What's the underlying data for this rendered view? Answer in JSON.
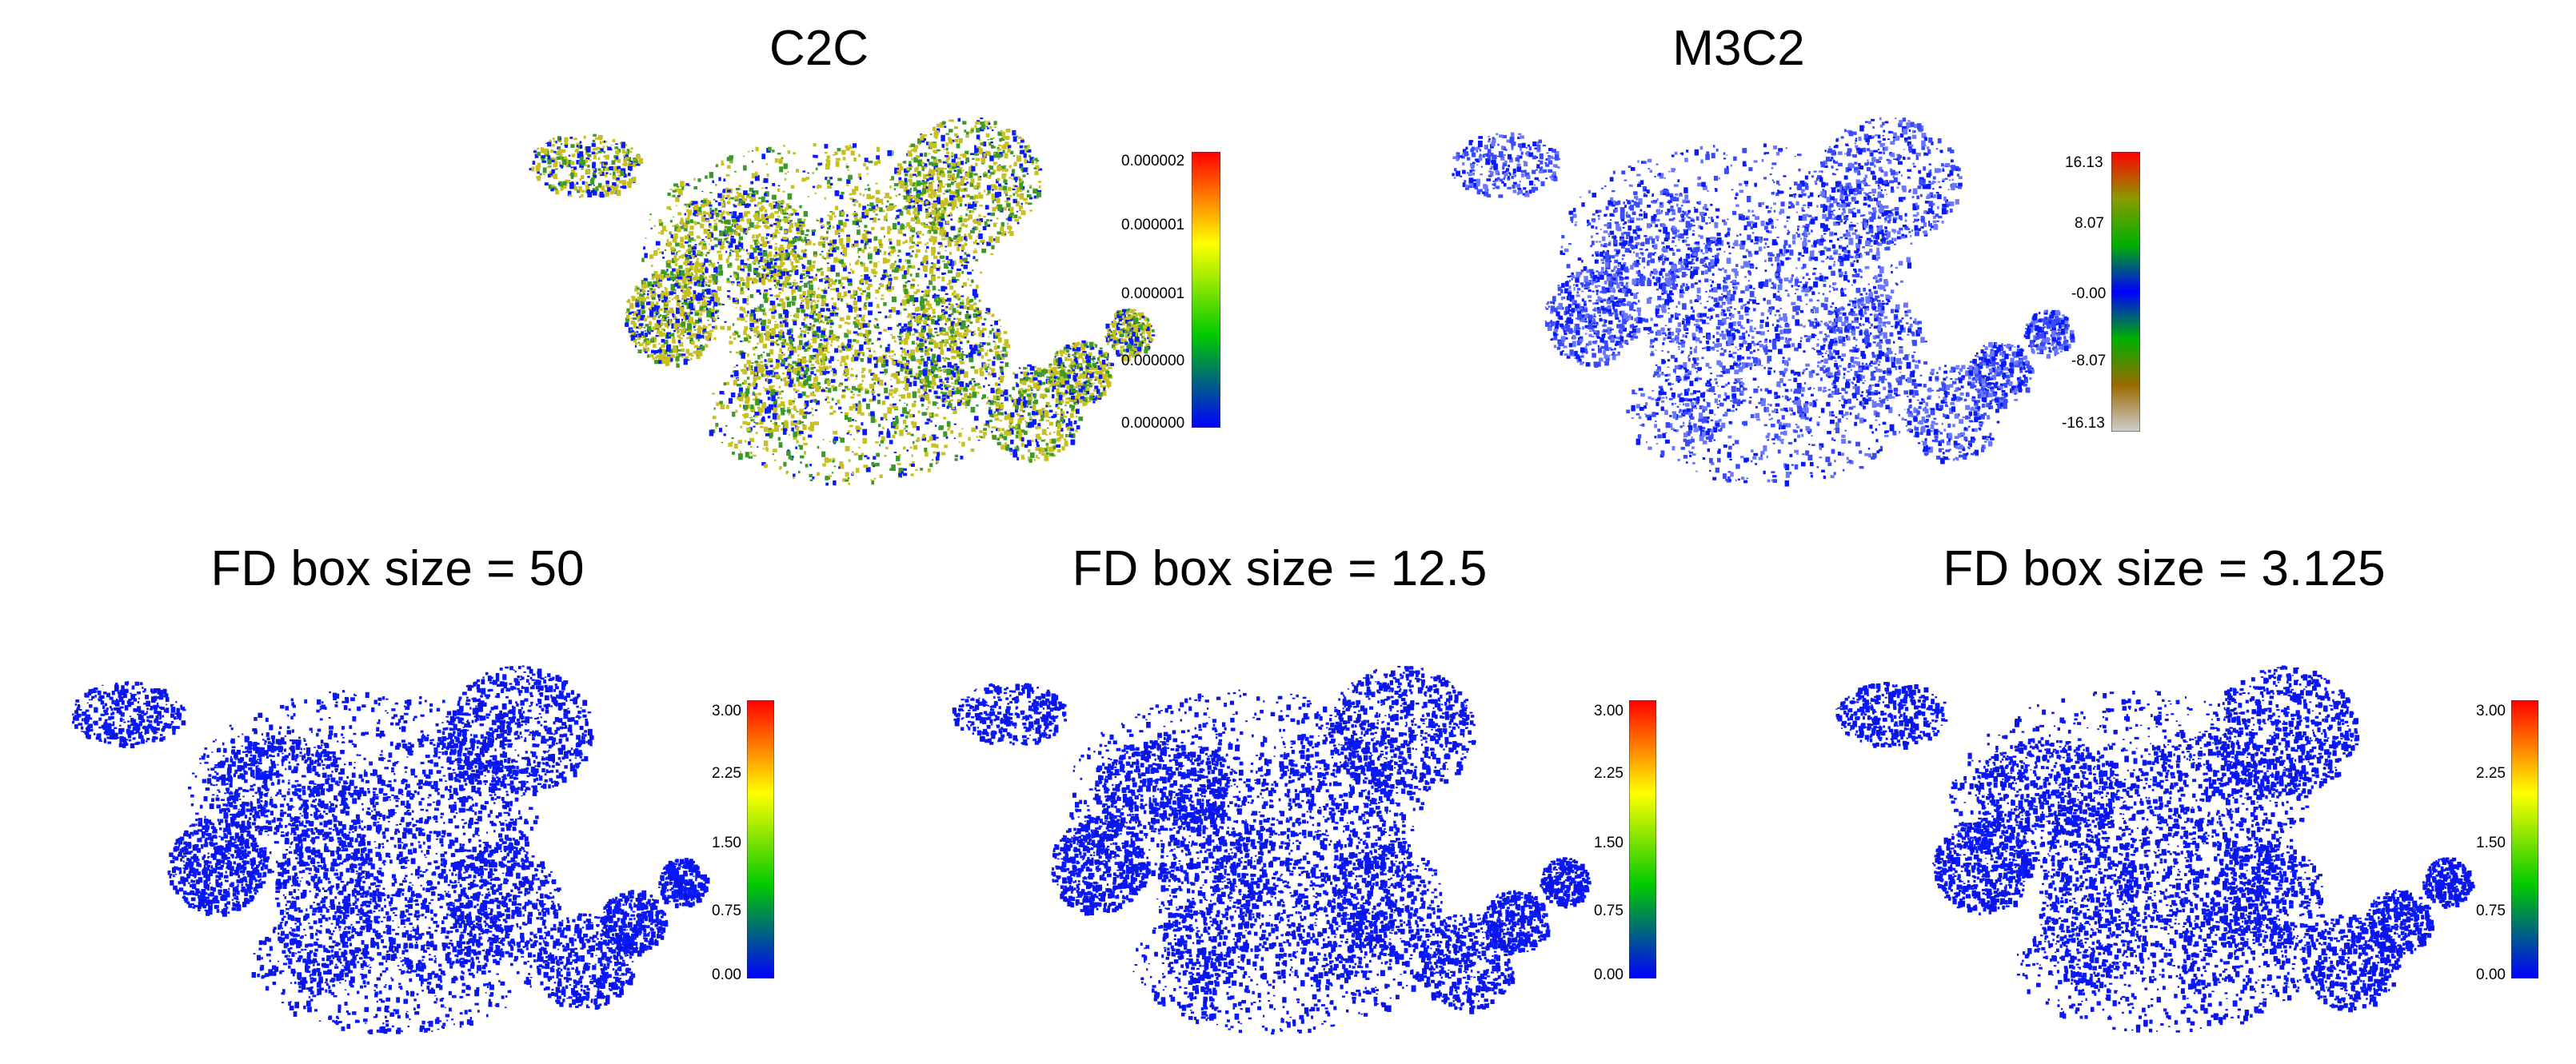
{
  "figure": {
    "panels": [
      {
        "id": "c2c",
        "title": "C2C",
        "colorbar": {
          "ticks": [
            "0.000002",
            "0.000001",
            "0.000001",
            "0.000000",
            "0.000000"
          ],
          "colors": [
            "#ff0000",
            "#ffff00",
            "#00c800",
            "#0000ff"
          ]
        },
        "cloud_color": "mixed blue-green-yellow"
      },
      {
        "id": "m3c2",
        "title": "M3C2",
        "colorbar": {
          "ticks": [
            "16.13",
            "8.07",
            "-0.00",
            "-8.07",
            "-16.13"
          ],
          "colors": [
            "#ff0000",
            "#8a9a00",
            "#00b000",
            "#0000ff",
            "#00b000",
            "#9a6a00",
            "#cfcfcf"
          ]
        },
        "cloud_color": "blue"
      },
      {
        "id": "fd50",
        "title": "FD box size = 50",
        "colorbar": {
          "ticks": [
            "3.00",
            "2.25",
            "1.50",
            "0.75",
            "0.00"
          ],
          "colors": [
            "#ff0000",
            "#ffff00",
            "#00c800",
            "#0000ff"
          ]
        },
        "cloud_color": "blue"
      },
      {
        "id": "fd12",
        "title": "FD box size = 12.5",
        "colorbar": {
          "ticks": [
            "3.00",
            "2.25",
            "1.50",
            "0.75",
            "0.00"
          ],
          "colors": [
            "#ff0000",
            "#ffff00",
            "#00c800",
            "#0000ff"
          ]
        },
        "cloud_color": "blue"
      },
      {
        "id": "fd3",
        "title": "FD box size = 3.125",
        "colorbar": {
          "ticks": [
            "3.00",
            "2.25",
            "1.50",
            "0.75",
            "0.00"
          ],
          "colors": [
            "#ff0000",
            "#ffff00",
            "#00c800",
            "#0000ff"
          ]
        },
        "cloud_color": "blue"
      }
    ],
    "colors": {
      "blue": "#0a1aff",
      "green": "#3a9a2a",
      "yellow": "#c8c020"
    }
  }
}
